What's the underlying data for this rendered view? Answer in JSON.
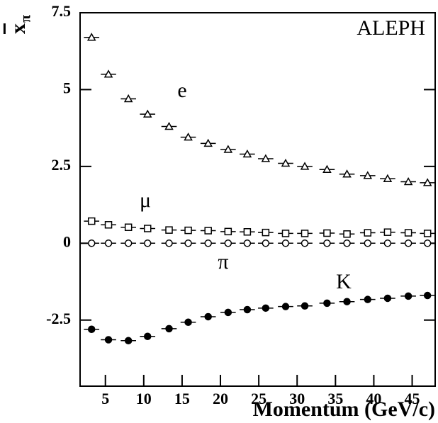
{
  "chart_data": {
    "type": "scatter",
    "xlabel": "Momentum (GeV/c)",
    "ylabel": "x",
    "ylabel_subscript": "π",
    "annotation": "ALEPH",
    "xlim": [
      1.7,
      48
    ],
    "ylim": [
      -4.65,
      7.5
    ],
    "xticks": [
      5,
      10,
      15,
      20,
      25,
      30,
      35,
      40,
      45
    ],
    "yticks": [
      7.5,
      5,
      2.5,
      0,
      -2.5
    ],
    "xerr": 1.0,
    "x": [
      3.2,
      5.4,
      8.0,
      10.5,
      13.3,
      15.8,
      18.4,
      21.0,
      23.5,
      25.9,
      28.5,
      31.0,
      33.9,
      36.5,
      39.2,
      41.8,
      44.5,
      47.0
    ],
    "series": [
      {
        "name": "e",
        "marker": "triangle-open",
        "color": "#000000",
        "values": [
          6.7,
          5.5,
          4.7,
          4.2,
          3.8,
          3.45,
          3.25,
          3.05,
          2.9,
          2.75,
          2.6,
          2.5,
          2.4,
          2.25,
          2.2,
          2.1,
          2.0,
          1.97
        ]
      },
      {
        "name": "μ",
        "marker": "square-open",
        "color": "#000000",
        "values": [
          0.72,
          0.6,
          0.52,
          0.48,
          0.43,
          0.42,
          0.41,
          0.38,
          0.37,
          0.35,
          0.32,
          0.32,
          0.33,
          0.3,
          0.34,
          0.36,
          0.34,
          0.32
        ]
      },
      {
        "name": "π",
        "marker": "circle-open",
        "color": "#000000",
        "values": [
          0,
          0,
          0,
          0,
          0,
          0,
          0,
          0,
          0,
          0,
          0,
          0,
          0,
          0,
          0,
          0,
          0,
          0
        ]
      },
      {
        "name": "K",
        "marker": "circle-filled",
        "color": "#000000",
        "values": [
          -2.8,
          -3.14,
          -3.17,
          -3.03,
          -2.78,
          -2.57,
          -2.39,
          -2.25,
          -2.16,
          -2.11,
          -2.06,
          -2.04,
          -1.95,
          -1.9,
          -1.83,
          -1.79,
          -1.72,
          -1.7
        ]
      }
    ]
  }
}
